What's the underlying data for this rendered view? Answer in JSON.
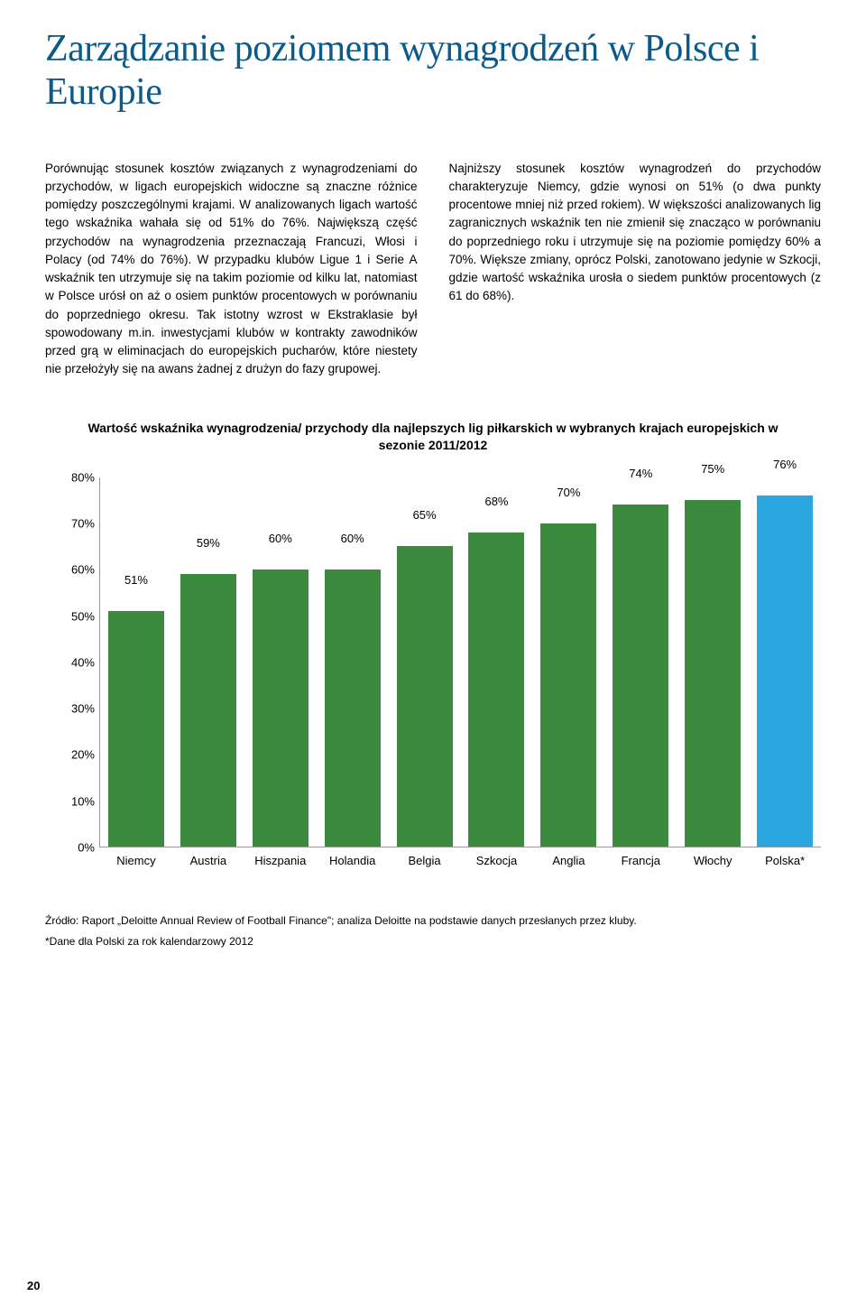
{
  "title": "Zarządzanie poziomem wynagrodzeń w Polsce i Europie",
  "col1": "Porównując stosunek kosztów związanych z wynagrodzeniami do przychodów, w ligach europejskich widoczne są znaczne różnice pomiędzy poszczególnymi krajami. W analizowanych ligach wartość tego wskaźnika wahała się od 51% do 76%. Największą część przychodów na wynagrodzenia przeznaczają Francuzi, Włosi i Polacy (od 74% do 76%). W przypadku klubów Ligue 1 i Serie A wskaźnik ten utrzymuje się na takim poziomie od kilku lat, natomiast w Polsce urósł on aż o osiem punktów procentowych w porównaniu do poprzedniego okresu. Tak istotny wzrost w Ekstraklasie był spowodowany m.in. inwestycjami klubów w kontrakty zawodników przed grą w eliminacjach do europejskich pucharów, które niestety nie przełożyły się na awans żadnej z drużyn do fazy grupowej.",
  "col2": "Najniższy stosunek kosztów wynagrodzeń do przychodów charakteryzuje Niemcy, gdzie wynosi on 51% (o dwa punkty procentowe mniej niż przed rokiem). W większości analizowanych lig zagranicznych wskaźnik ten nie zmienił się znacząco w porównaniu do poprzedniego roku i utrzymuje się na poziomie pomiędzy 60% a 70%. Większe zmiany, oprócz Polski, zanotowano jedynie w Szkocji, gdzie wartość wskaźnika urosła o siedem punktów procentowych (z 61 do 68%).",
  "chart": {
    "title": "Wartość wskaźnika wynagrodzenia/ przychody dla najlepszych lig piłkarskich w wybranych krajach europejskich w sezonie 2011/2012",
    "ymax": 80,
    "yticks": [
      0,
      10,
      20,
      30,
      40,
      50,
      60,
      70,
      80
    ],
    "bar_colors_default": "#3b8a3e",
    "bar_color_highlight": "#2aa7de",
    "bars": [
      {
        "label": "Niemcy",
        "value": 51,
        "color": "#3b8a3e"
      },
      {
        "label": "Austria",
        "value": 59,
        "color": "#3b8a3e"
      },
      {
        "label": "Hiszpania",
        "value": 60,
        "color": "#3b8a3e"
      },
      {
        "label": "Holandia",
        "value": 60,
        "color": "#3b8a3e"
      },
      {
        "label": "Belgia",
        "value": 65,
        "color": "#3b8a3e"
      },
      {
        "label": "Szkocja",
        "value": 68,
        "color": "#3b8a3e"
      },
      {
        "label": "Anglia",
        "value": 70,
        "color": "#3b8a3e"
      },
      {
        "label": "Francja",
        "value": 74,
        "color": "#3b8a3e"
      },
      {
        "label": "Włochy",
        "value": 75,
        "color": "#3b8a3e"
      },
      {
        "label": "Polska*",
        "value": 76,
        "color": "#2aa7de"
      }
    ]
  },
  "footnote1": "Źródło: Raport „Deloitte Annual Review of Football Finance\"; analiza Deloitte na podstawie danych przesłanych przez kluby.",
  "footnote2": "*Dane dla Polski za rok kalendarzowy 2012",
  "page_number": "20"
}
